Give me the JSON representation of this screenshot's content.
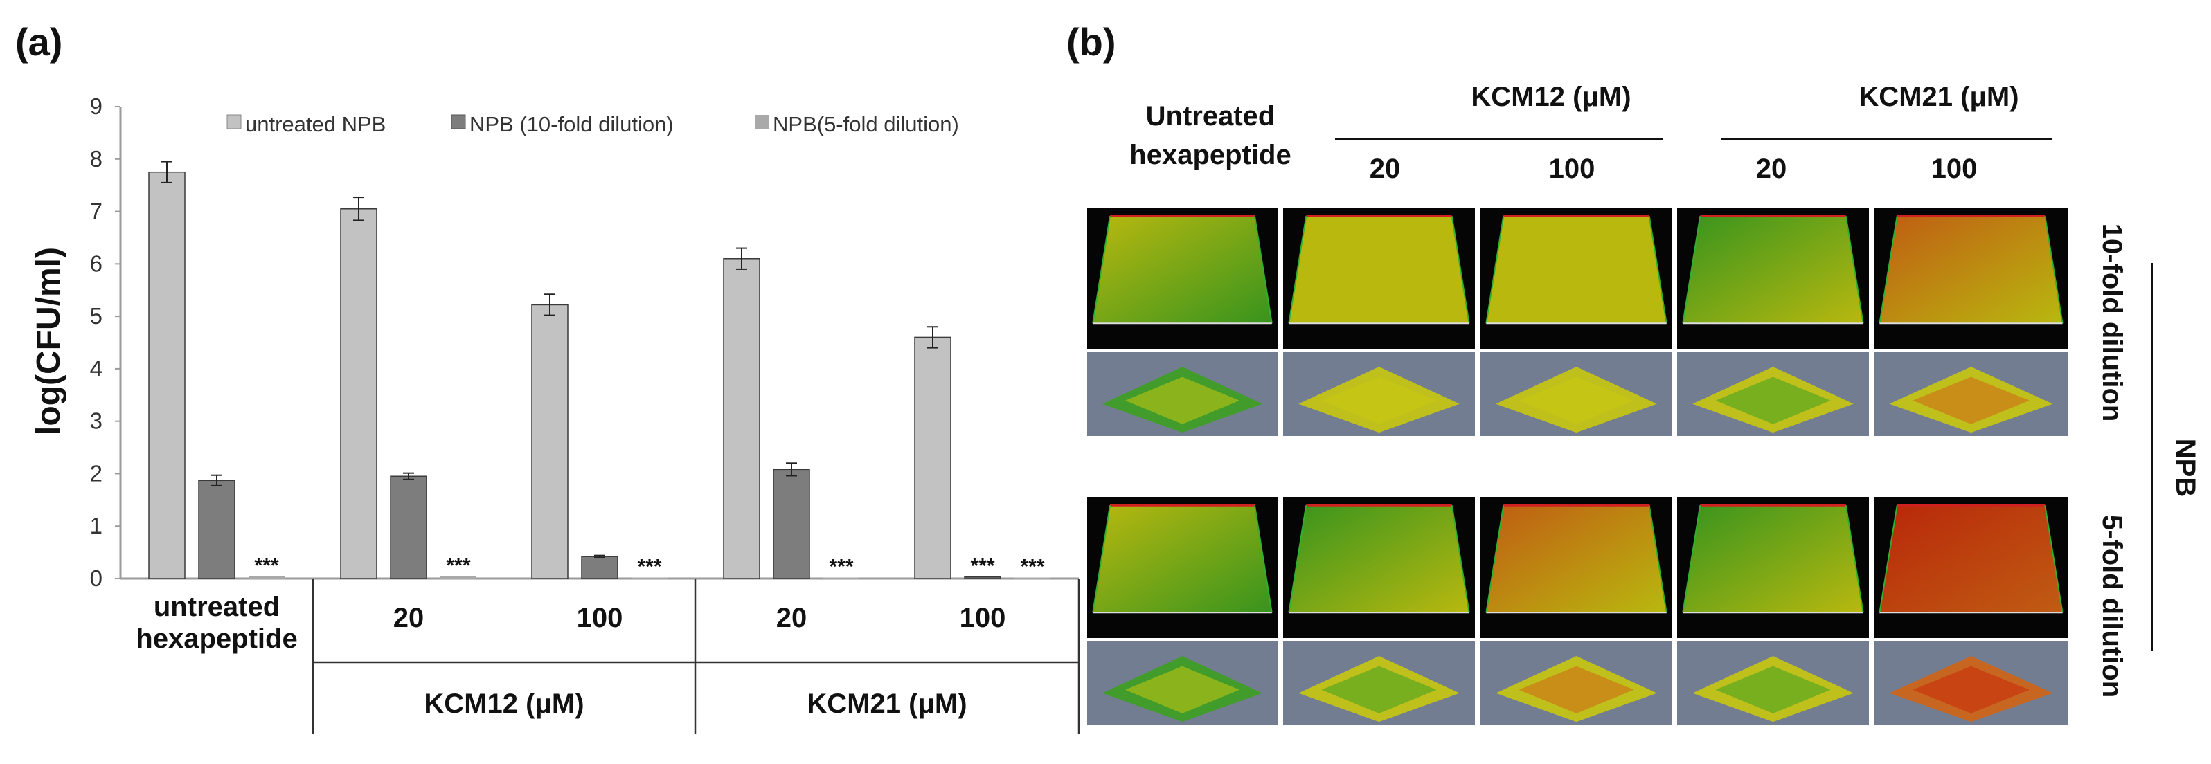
{
  "chart_data": {
    "panel_label": "(a)",
    "type": "bar",
    "ylabel": "log(CFU/ml)",
    "ylim": [
      0,
      9
    ],
    "yticks": [
      "0",
      "1",
      "2",
      "3",
      "4",
      "5",
      "6",
      "7",
      "8",
      "9"
    ],
    "grid": false,
    "legend_position": "top",
    "categories": [
      "untreated hexapeptide",
      "20",
      "100",
      "20",
      "100"
    ],
    "category_lines": [
      [
        "untreated",
        "hexapeptide"
      ],
      [
        "20"
      ],
      [
        "100"
      ],
      [
        "20"
      ],
      [
        "100"
      ]
    ],
    "group_labels": [
      "KCM12 (μM)",
      "KCM21 (μM)"
    ],
    "series": [
      {
        "name": "untreated NPB",
        "color": "#c2c2c2",
        "values": [
          7.75,
          7.05,
          5.22,
          6.1,
          4.6
        ],
        "errors": [
          0.2,
          0.22,
          0.2,
          0.2,
          0.2
        ]
      },
      {
        "name": "NPB (10-fold dilution)",
        "color": "#7d7d7d",
        "values": [
          1.87,
          1.95,
          0.42,
          2.08,
          0.03
        ],
        "errors": [
          0.1,
          0.06,
          0.02,
          0.12,
          0
        ]
      },
      {
        "name": "NPB(5-fold dilution)",
        "color": "#a9a9a9",
        "values": [
          0.04,
          0.04,
          0.02,
          0.02,
          0.02
        ],
        "errors": [
          0,
          0,
          0,
          0,
          0
        ]
      }
    ],
    "annotations": [
      {
        "category": 0,
        "series": 2,
        "text": "***"
      },
      {
        "category": 1,
        "series": 2,
        "text": "***"
      },
      {
        "category": 2,
        "series": 2,
        "text": "***"
      },
      {
        "category": 3,
        "series": 2,
        "text": "***"
      },
      {
        "category": 4,
        "series": 1,
        "text": "***"
      },
      {
        "category": 4,
        "series": 2,
        "text": "***"
      }
    ]
  },
  "panel_b": {
    "panel_label": "(b)",
    "untreated_header": [
      "Untreated",
      "hexapeptide"
    ],
    "groups": [
      {
        "name": "KCM12 (μM)",
        "concentrations": [
          "20",
          "100"
        ]
      },
      {
        "name": "KCM21 (μM)",
        "concentrations": [
          "20",
          "100"
        ]
      }
    ],
    "row_labels": [
      "10-fold dilution",
      "5-fold dilution"
    ],
    "side_label": "NPB",
    "colors": {
      "top_bg": "#050505",
      "bottom_bg": "#737d92",
      "green": "#3ca020",
      "yellow": "#c8c810",
      "orange": "#d06414",
      "red": "#c82a0a"
    },
    "tiles": [
      [
        "yellow-green",
        "yellow",
        "yellow",
        "green-yellow",
        "orange-yellow"
      ],
      [
        "yellow-green",
        "green-yellow",
        "orange-yellow",
        "green-yellow",
        "red-orange"
      ]
    ]
  }
}
